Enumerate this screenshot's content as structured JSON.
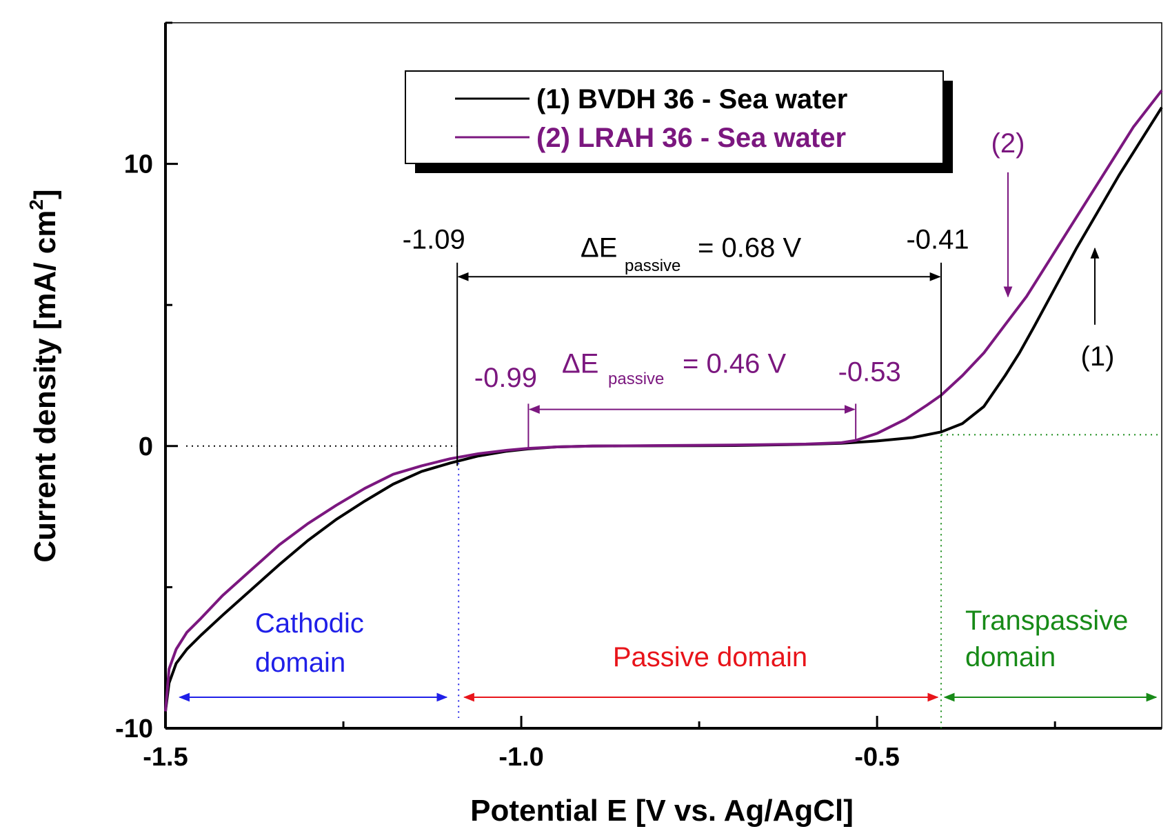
{
  "chart_data": {
    "type": "line",
    "xlabel": "Potential E [V vs. Ag/AgCl]",
    "ylabel": "Current density [mA/ cm",
    "ylabel_sup": "2",
    "ylabel_end": "]",
    "xlim": [
      -1.5,
      -0.1
    ],
    "ylim": [
      -10,
      15
    ],
    "xticks": [
      -1.5,
      -1.0,
      -0.5
    ],
    "xtick_labels": [
      "-1.5",
      "-1.0",
      "-0.5"
    ],
    "yticks": [
      -10,
      0,
      10
    ],
    "ytick_labels": [
      "-10",
      "0",
      "10"
    ],
    "series": [
      {
        "name": "(1) BVDH 36 - Sea water",
        "color": "#000000",
        "points": [
          [
            -1.5,
            -9.4
          ],
          [
            -1.495,
            -8.4
          ],
          [
            -1.485,
            -7.7
          ],
          [
            -1.47,
            -7.2
          ],
          [
            -1.45,
            -6.7
          ],
          [
            -1.42,
            -6.0
          ],
          [
            -1.38,
            -5.1
          ],
          [
            -1.34,
            -4.2
          ],
          [
            -1.3,
            -3.35
          ],
          [
            -1.26,
            -2.6
          ],
          [
            -1.22,
            -1.95
          ],
          [
            -1.18,
            -1.35
          ],
          [
            -1.14,
            -0.9
          ],
          [
            -1.1,
            -0.6
          ],
          [
            -1.06,
            -0.35
          ],
          [
            -1.02,
            -0.18
          ],
          [
            -0.99,
            -0.1
          ],
          [
            -0.95,
            -0.03
          ],
          [
            -0.9,
            0.0
          ],
          [
            -0.8,
            0.01
          ],
          [
            -0.7,
            0.02
          ],
          [
            -0.6,
            0.06
          ],
          [
            -0.55,
            0.1
          ],
          [
            -0.5,
            0.18
          ],
          [
            -0.45,
            0.3
          ],
          [
            -0.41,
            0.5
          ],
          [
            -0.38,
            0.8
          ],
          [
            -0.35,
            1.4
          ],
          [
            -0.32,
            2.5
          ],
          [
            -0.3,
            3.3
          ],
          [
            -0.28,
            4.2
          ],
          [
            -0.25,
            5.6
          ],
          [
            -0.22,
            7.0
          ],
          [
            -0.19,
            8.3
          ],
          [
            -0.16,
            9.6
          ],
          [
            -0.13,
            10.8
          ],
          [
            -0.1,
            12.0
          ]
        ]
      },
      {
        "name": "(2) LRAH 36 - Sea water",
        "color": "#7b177f",
        "points": [
          [
            -1.5,
            -9.4
          ],
          [
            -1.495,
            -7.9
          ],
          [
            -1.485,
            -7.2
          ],
          [
            -1.47,
            -6.6
          ],
          [
            -1.45,
            -6.1
          ],
          [
            -1.42,
            -5.3
          ],
          [
            -1.38,
            -4.4
          ],
          [
            -1.34,
            -3.5
          ],
          [
            -1.3,
            -2.75
          ],
          [
            -1.26,
            -2.1
          ],
          [
            -1.22,
            -1.5
          ],
          [
            -1.18,
            -1.0
          ],
          [
            -1.14,
            -0.7
          ],
          [
            -1.1,
            -0.45
          ],
          [
            -1.06,
            -0.27
          ],
          [
            -1.02,
            -0.15
          ],
          [
            -0.99,
            -0.08
          ],
          [
            -0.95,
            -0.03
          ],
          [
            -0.9,
            0.0
          ],
          [
            -0.8,
            0.02
          ],
          [
            -0.7,
            0.04
          ],
          [
            -0.6,
            0.07
          ],
          [
            -0.55,
            0.12
          ],
          [
            -0.53,
            0.2
          ],
          [
            -0.5,
            0.45
          ],
          [
            -0.46,
            0.95
          ],
          [
            -0.43,
            1.45
          ],
          [
            -0.41,
            1.8
          ],
          [
            -0.38,
            2.5
          ],
          [
            -0.35,
            3.3
          ],
          [
            -0.32,
            4.3
          ],
          [
            -0.29,
            5.3
          ],
          [
            -0.26,
            6.5
          ],
          [
            -0.23,
            7.7
          ],
          [
            -0.2,
            8.9
          ],
          [
            -0.17,
            10.1
          ],
          [
            -0.14,
            11.3
          ],
          [
            -0.1,
            12.6
          ]
        ]
      }
    ],
    "legend": {
      "placement": "top-center",
      "entries": [
        "(1) BVDH 36 - Sea water",
        "(2) LRAH 36 - Sea water"
      ]
    },
    "annotations": {
      "black_left_value": -1.09,
      "black_right_value": -0.41,
      "black_left_label": "-1.09",
      "black_right_label": "-0.41",
      "black_delta_symbol": "ΔE",
      "black_delta_sub": "passive",
      "black_delta_value": "= 0.68 V",
      "purple_left_value": -0.99,
      "purple_right_value": -0.53,
      "purple_left_label": "-0.99",
      "purple_right_label": "-0.53",
      "purple_delta_symbol": "ΔE",
      "purple_delta_sub": "passive",
      "purple_delta_value": "= 0.46 V",
      "series_label_1": "(1)",
      "series_label_2": "(2)",
      "cathodic_line1": "Cathodic",
      "cathodic_line2": "domain",
      "passive_label": "Passive domain",
      "transpassive_line1": "Transpassive",
      "transpassive_line2": "domain"
    },
    "colors": {
      "cathodic": "#1f1fe8",
      "passive": "#e8141a",
      "transpassive": "#178a17",
      "purple": "#7b177f",
      "black": "#000000"
    }
  }
}
